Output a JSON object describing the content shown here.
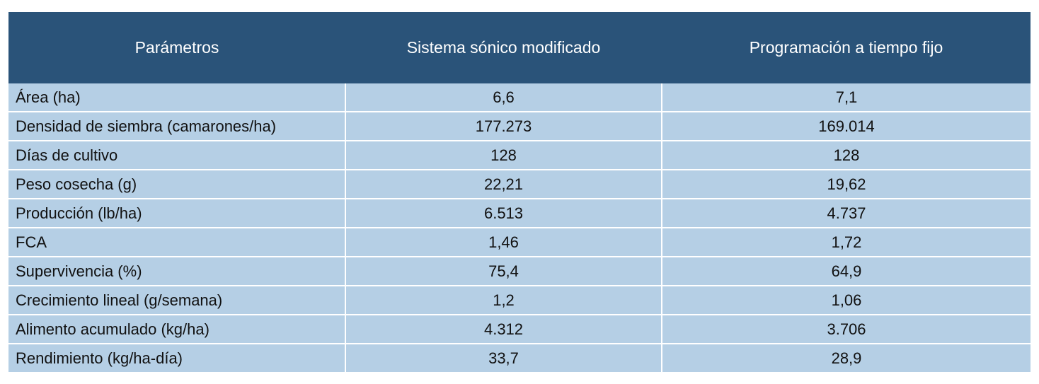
{
  "table": {
    "header": [
      "Parámetros",
      "Sistema sónico modificado",
      "Programación a tiempo fijo"
    ],
    "rows": [
      [
        "Área (ha)",
        "6,6",
        "7,1"
      ],
      [
        "Densidad de siembra (camarones/ha)",
        "177.273",
        "169.014"
      ],
      [
        "Días de cultivo",
        "128",
        "128"
      ],
      [
        "Peso cosecha (g)",
        "22,21",
        "19,62"
      ],
      [
        "Producción (lb/ha)",
        "6.513",
        "4.737"
      ],
      [
        "FCA",
        "1,46",
        "1,72"
      ],
      [
        "Supervivencia (%)",
        "75,4",
        "64,9"
      ],
      [
        "Crecimiento lineal (g/semana)",
        "1,2",
        "1,06"
      ],
      [
        "Alimento acumulado (kg/ha)",
        "4.312",
        "3.706"
      ],
      [
        "Rendimiento (kg/ha-día)",
        "33,7",
        "28,9"
      ]
    ]
  }
}
